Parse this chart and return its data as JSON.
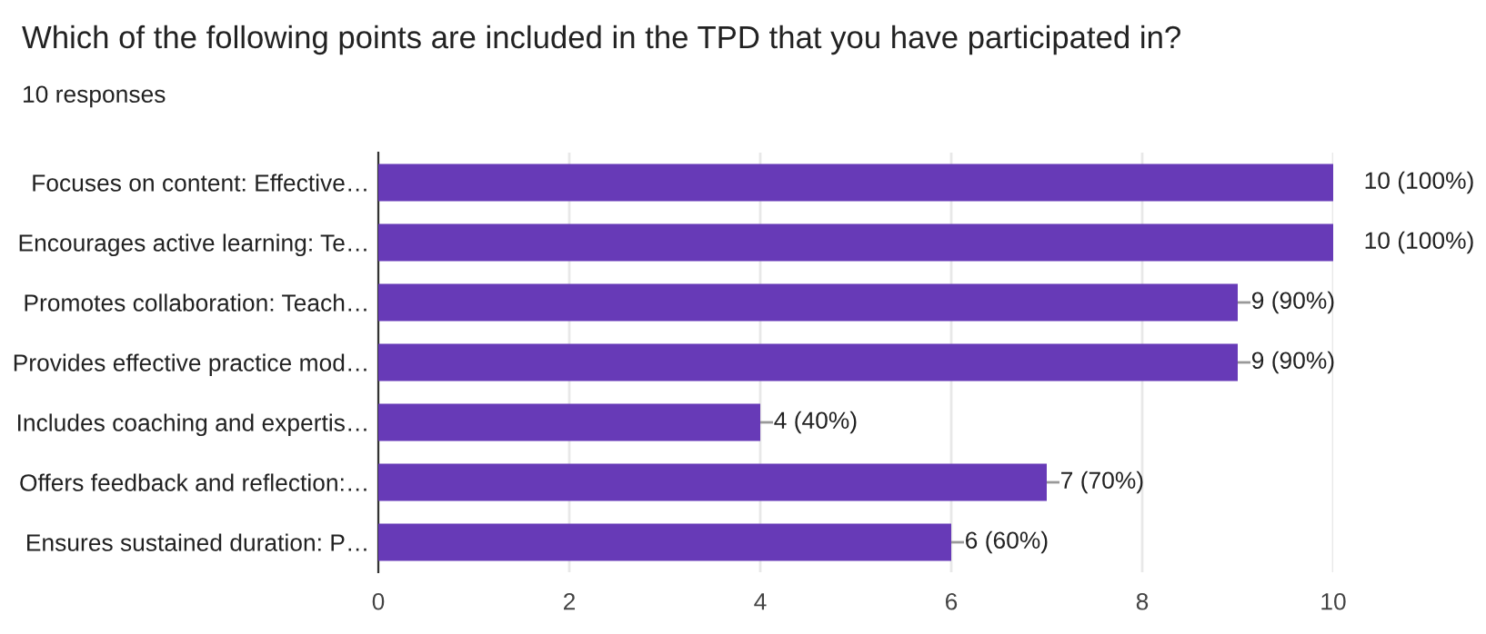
{
  "chart_data": {
    "type": "bar",
    "orientation": "horizontal",
    "title": "Which of the following points are included in the TPD that you have participated in?",
    "subtitle": "10 responses",
    "categories": [
      "Focuses on content: Effective…",
      "Encourages active learning: Te…",
      "Promotes collaboration: Teach…",
      "Provides effective practice mod…",
      "Includes coaching and expertis…",
      "Offers feedback and reflection:…",
      "Ensures sustained duration: P…"
    ],
    "values": [
      10,
      10,
      9,
      9,
      4,
      7,
      6
    ],
    "value_labels": [
      "10 (100%)",
      "10 (100%)",
      "9 (90%)",
      "9 (90%)",
      "4 (40%)",
      "7 (70%)",
      "6 (60%)"
    ],
    "color": "#673ab7",
    "xlim": [
      0,
      10
    ],
    "xticks": [
      0,
      2,
      4,
      6,
      8,
      10
    ],
    "grid": "x",
    "legend": false
  }
}
